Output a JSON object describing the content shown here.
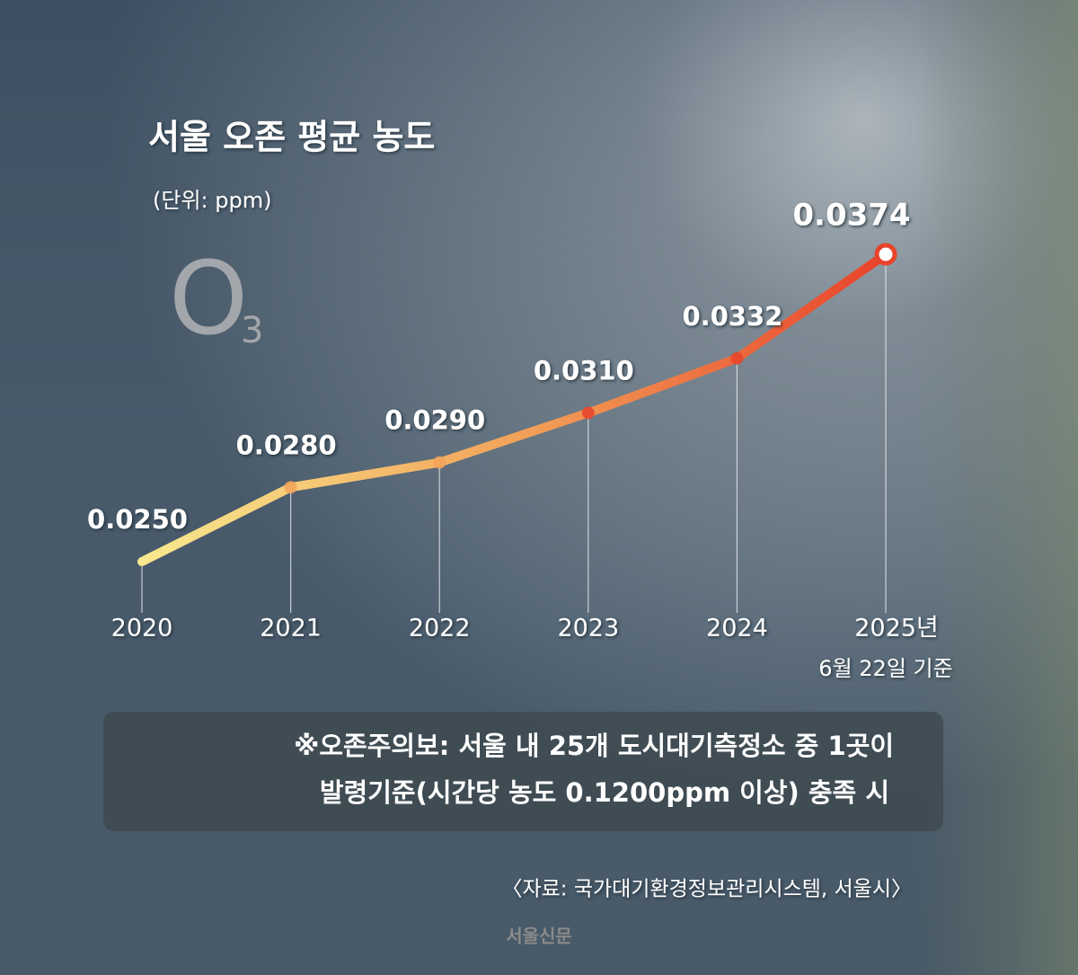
{
  "chart_data": {
    "type": "line",
    "title": "서울 오존 평균 농도",
    "subtitle": "(단위: ppm)",
    "symbol": "O",
    "symbol_subscript": "3",
    "categories": [
      "2020",
      "2021",
      "2022",
      "2023",
      "2024",
      "2025년"
    ],
    "category_note": "6월 22일 기준",
    "series": [
      {
        "name": "서울 오존 평균 농도",
        "colors": [
          "#f8e88e",
          "#f2a35a",
          "#e8432b"
        ],
        "values": [
          0.025,
          0.028,
          0.029,
          0.031,
          0.0332,
          0.0374
        ],
        "value_labels": [
          "0.0250",
          "0.0280",
          "0.0290",
          "0.0310",
          "0.0332",
          "0.0374"
        ]
      }
    ],
    "note": [
      "※오존주의보: 서울 내 25개 도시대기측정소 중 1곳이",
      "발령기준(시간당 농도 0.1200ppm 이상) 충족 시"
    ],
    "source": "〈자료: 국가대기환경정보관리시스템, 서울시〉",
    "watermark": "서울신문"
  }
}
